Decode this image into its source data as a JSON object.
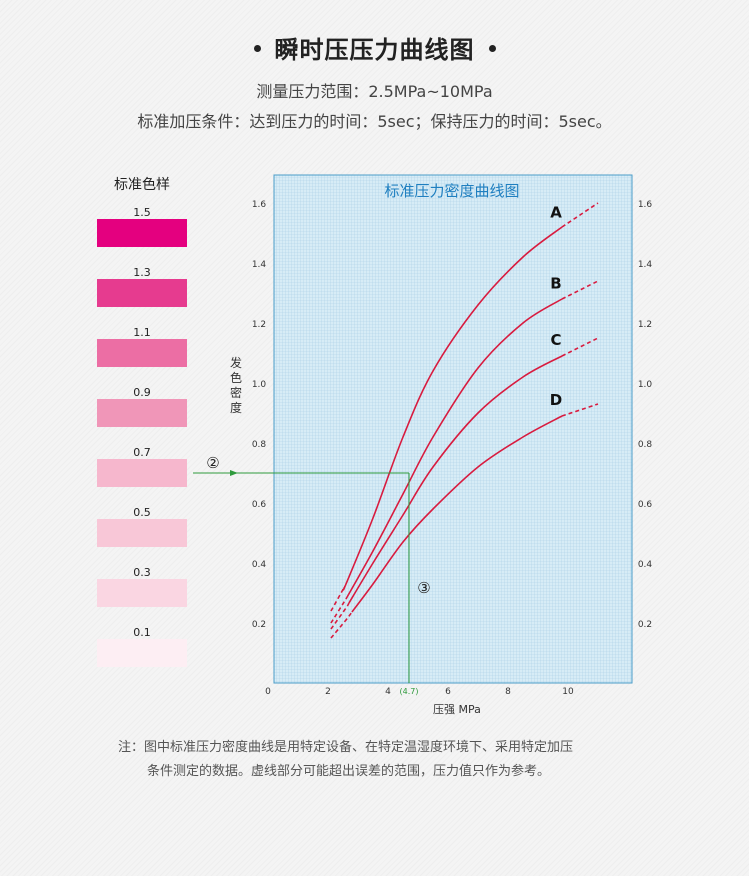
{
  "header": {
    "title": "瞬时压压力曲线图",
    "subtitle_range": "测量压力范围：2.5MPa~10MPa",
    "subtitle_condition": "标准加压条件：达到压力的时间：5sec；保持压力的时间：5sec。"
  },
  "swatches": {
    "title": "标准色样",
    "items": [
      {
        "label": "1.5",
        "color": "#e4007f"
      },
      {
        "label": "1.3",
        "color": "#e63b8f"
      },
      {
        "label": "1.1",
        "color": "#ec6ea4"
      },
      {
        "label": "0.9",
        "color": "#f096b8"
      },
      {
        "label": "0.7",
        "color": "#f6b7cd"
      },
      {
        "label": "0.5",
        "color": "#f8c7d7"
      },
      {
        "label": "0.3",
        "color": "#fad6e2"
      },
      {
        "label": "0.1",
        "color": "#fdeef3"
      }
    ]
  },
  "chart_data": {
    "type": "line",
    "title": "标准压力密度曲线图",
    "xlabel": "压强 MPa",
    "ylabel": "发色密度",
    "xlim": [
      0,
      12
    ],
    "ylim": [
      0,
      1.7
    ],
    "x_ticks": [
      "0",
      "2",
      "4",
      "6",
      "8",
      "10"
    ],
    "y_ticks": [
      "0.2",
      "0.4",
      "0.6",
      "0.8",
      "1.0",
      "1.2",
      "1.4",
      "1.6"
    ],
    "grid": true,
    "colors": {
      "curve": "#d81b3f",
      "guide": "#2e9a3c",
      "title": "#1f7fc0",
      "plot_bg": "#d7ecf6",
      "plot_border": "#4a9cc8"
    },
    "series": [
      {
        "name": "A",
        "values": [
          [
            2.1,
            0.24
          ],
          [
            2.6,
            0.33
          ],
          [
            3.5,
            0.55
          ],
          [
            4.5,
            0.82
          ],
          [
            5.5,
            1.04
          ],
          [
            7.0,
            1.26
          ],
          [
            8.5,
            1.42
          ],
          [
            9.8,
            1.52
          ],
          [
            11.0,
            1.6
          ]
        ],
        "solid_from": 2.55,
        "solid_to": 9.8
      },
      {
        "name": "B",
        "values": [
          [
            2.1,
            0.2
          ],
          [
            2.6,
            0.28
          ],
          [
            3.5,
            0.44
          ],
          [
            4.5,
            0.63
          ],
          [
            5.5,
            0.82
          ],
          [
            7.0,
            1.05
          ],
          [
            8.5,
            1.2
          ],
          [
            9.8,
            1.28
          ],
          [
            11.0,
            1.34
          ]
        ],
        "solid_from": 2.6,
        "solid_to": 9.8
      },
      {
        "name": "C",
        "values": [
          [
            2.1,
            0.18
          ],
          [
            2.6,
            0.25
          ],
          [
            3.5,
            0.4
          ],
          [
            4.5,
            0.56
          ],
          [
            5.5,
            0.72
          ],
          [
            7.0,
            0.9
          ],
          [
            8.5,
            1.02
          ],
          [
            9.8,
            1.09
          ],
          [
            11.0,
            1.15
          ]
        ],
        "solid_from": 2.7,
        "solid_to": 9.8
      },
      {
        "name": "D",
        "values": [
          [
            2.1,
            0.15
          ],
          [
            2.6,
            0.21
          ],
          [
            3.5,
            0.33
          ],
          [
            4.5,
            0.47
          ],
          [
            5.5,
            0.58
          ],
          [
            7.0,
            0.72
          ],
          [
            8.5,
            0.82
          ],
          [
            9.8,
            0.89
          ],
          [
            11.0,
            0.93
          ]
        ],
        "solid_from": 2.8,
        "solid_to": 9.8
      }
    ],
    "annotations": [
      {
        "label": "②",
        "y": 0.7,
        "kind": "density-arrow"
      },
      {
        "label": "③",
        "x": 4.7,
        "kind": "pressure-drop"
      },
      {
        "label": "(4.7)",
        "x": 4.7,
        "kind": "x-readout"
      }
    ]
  },
  "notes": {
    "line1": "注：图中标准压力密度曲线是用特定设备、在特定温湿度环境下、采用特定加压",
    "line2": "条件测定的数据。虚线部分可能超出误差的范围，压力值只作为参考。"
  }
}
